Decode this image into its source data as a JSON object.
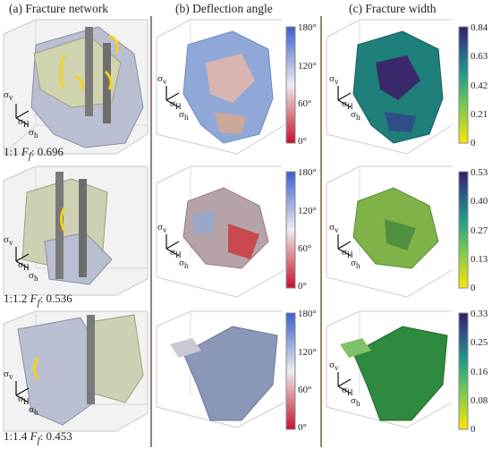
{
  "columns": {
    "a": "(a) Fracture network",
    "b": "(b) Deflection angle",
    "c": "(c) Fracture width"
  },
  "axis_symbols": {
    "v": "σ",
    "v_sub": "v",
    "H": "σ",
    "H_sub": "H",
    "h": "σ",
    "h_sub": "h"
  },
  "rows": [
    {
      "ratio": "1:1",
      "F_symbol": "F",
      "F_sub": "f",
      "F_value": ": 0.696",
      "angle_ticks": [
        "180°",
        "120°",
        "60°",
        "0°"
      ],
      "width_ticks": [
        "0.84",
        "0.63",
        "0.42",
        "0.21",
        "0"
      ]
    },
    {
      "ratio": "1:1.2",
      "F_symbol": "F",
      "F_sub": "f",
      "F_value": ": 0.536",
      "angle_ticks": [
        "180°",
        "120°",
        "60°",
        "0°"
      ],
      "width_ticks": [
        "0.53",
        "0.40",
        "0.27",
        "0.13",
        "0"
      ]
    },
    {
      "ratio": "1:1.4",
      "F_symbol": "F",
      "F_sub": "f",
      "F_value": ": 0.453",
      "angle_ticks": [
        "180°",
        "120°",
        "60°",
        "0°"
      ],
      "width_ticks": [
        "0.33",
        "0.25",
        "0.16",
        "0.08",
        "0"
      ]
    }
  ],
  "colormaps": {
    "deflection_angle": [
      "#c8102e",
      "#e8e8e8",
      "#3a5fcd"
    ],
    "fracture_width": [
      "#ffe600",
      "#2ea58a",
      "#3a1a6b"
    ]
  }
}
